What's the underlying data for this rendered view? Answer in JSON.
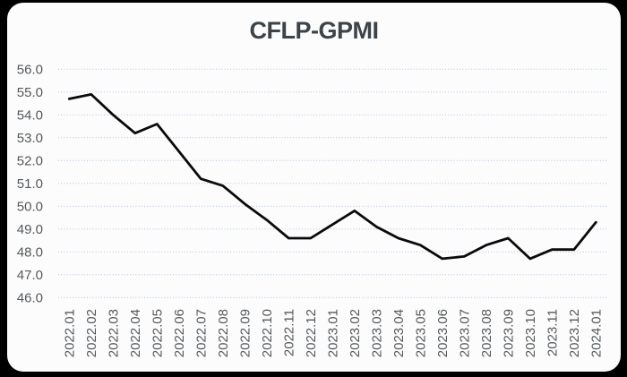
{
  "page": {
    "background": "#000000"
  },
  "card": {
    "background": "#fcfcfd"
  },
  "chart_data": {
    "type": "line",
    "title": "CFLP-GPMI",
    "categories": [
      "2022.01",
      "2022.02",
      "2022.03",
      "2022.04",
      "2022.05",
      "2022.06",
      "2022.07",
      "2022.08",
      "2022.09",
      "2022.10",
      "2022.11",
      "2022.12",
      "2023.01",
      "2023.02",
      "2023.03",
      "2023.04",
      "2023.05",
      "2023.06",
      "2023.07",
      "2023.08",
      "2023.09",
      "2023.10",
      "2023.11",
      "2023.12",
      "2024.01"
    ],
    "series": [
      {
        "name": "CFLP-GPMI",
        "color": "#0a0a0a",
        "values": [
          54.7,
          54.9,
          54.0,
          53.2,
          53.6,
          52.4,
          51.2,
          50.9,
          50.1,
          49.4,
          48.6,
          48.6,
          49.2,
          49.8,
          49.1,
          48.6,
          48.3,
          47.7,
          47.8,
          48.3,
          48.6,
          47.7,
          48.1,
          48.1,
          49.3
        ]
      }
    ],
    "xlabel": "",
    "ylabel": "",
    "ylim": [
      46.0,
      56.0
    ],
    "ytick_step": 1.0,
    "yticks": [
      "56.0",
      "55.0",
      "54.0",
      "53.0",
      "52.0",
      "51.0",
      "50.0",
      "49.0",
      "48.0",
      "47.0",
      "46.0"
    ],
    "grid": {
      "horizontal": true,
      "vertical": false,
      "style": "dotted",
      "color": "#aec4dc"
    },
    "legend": "none",
    "styles": {
      "title_color": "#3d4347",
      "axis_label_color": "#55595b",
      "x_label_rotation": -90,
      "line_width": 2.8
    }
  }
}
